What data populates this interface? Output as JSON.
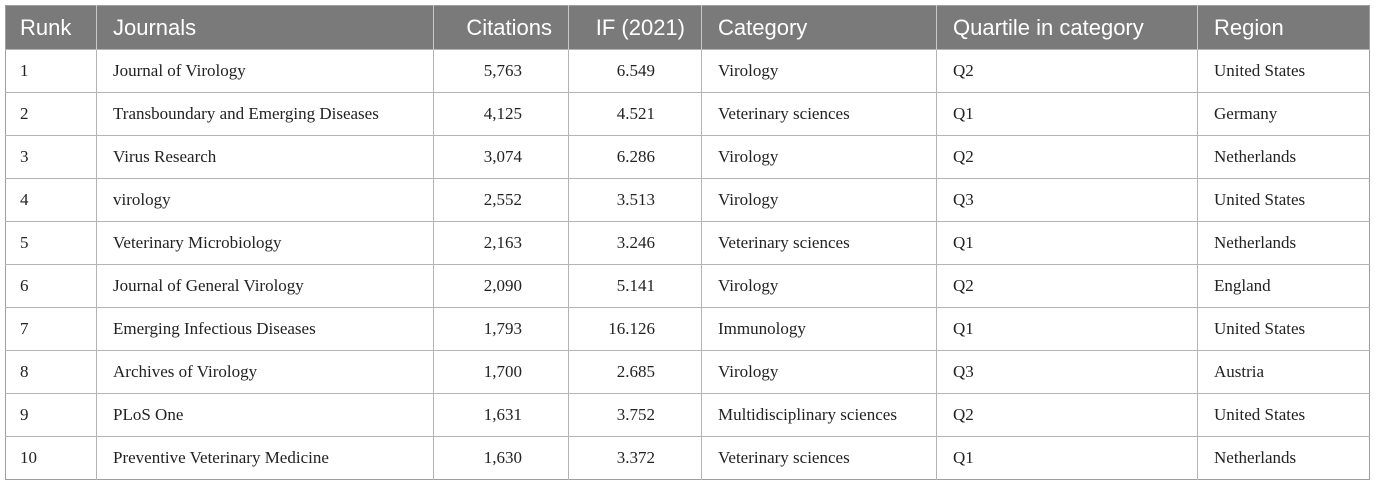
{
  "table": {
    "headers": {
      "rank": "Runk",
      "journal": "Journals",
      "citations": "Citations",
      "if": "IF (2021)",
      "category": "Category",
      "quartile": "Quartile in category",
      "region": "Region"
    },
    "rows": [
      {
        "rank": "1",
        "journal": "Journal of Virology",
        "citations": "5,763",
        "if": "6.549",
        "category": "Virology",
        "quartile": "Q2",
        "region": "United States"
      },
      {
        "rank": "2",
        "journal": "Transboundary and Emerging Diseases",
        "citations": "4,125",
        "if": "4.521",
        "category": "Veterinary sciences",
        "quartile": "Q1",
        "region": "Germany"
      },
      {
        "rank": "3",
        "journal": "Virus Research",
        "citations": "3,074",
        "if": "6.286",
        "category": "Virology",
        "quartile": "Q2",
        "region": "Netherlands"
      },
      {
        "rank": "4",
        "journal": "virology",
        "citations": "2,552",
        "if": "3.513",
        "category": "Virology",
        "quartile": "Q3",
        "region": "United States"
      },
      {
        "rank": "5",
        "journal": "Veterinary Microbiology",
        "citations": "2,163",
        "if": "3.246",
        "category": "Veterinary sciences",
        "quartile": "Q1",
        "region": "Netherlands"
      },
      {
        "rank": "6",
        "journal": "Journal of General Virology",
        "citations": "2,090",
        "if": "5.141",
        "category": "Virology",
        "quartile": "Q2",
        "region": "England"
      },
      {
        "rank": "7",
        "journal": "Emerging Infectious Diseases",
        "citations": "1,793",
        "if": "16.126",
        "category": "Immunology",
        "quartile": "Q1",
        "region": "United States"
      },
      {
        "rank": "8",
        "journal": "Archives of Virology",
        "citations": "1,700",
        "if": "2.685",
        "category": "Virology",
        "quartile": "Q3",
        "region": "Austria"
      },
      {
        "rank": "9",
        "journal": "PLoS One",
        "citations": "1,631",
        "if": "3.752",
        "category": "Multidisciplinary sciences",
        "quartile": "Q2",
        "region": "United States"
      },
      {
        "rank": "10",
        "journal": "Preventive Veterinary Medicine",
        "citations": "1,630",
        "if": "3.372",
        "category": "Veterinary sciences",
        "quartile": "Q1",
        "region": "Netherlands"
      }
    ]
  }
}
